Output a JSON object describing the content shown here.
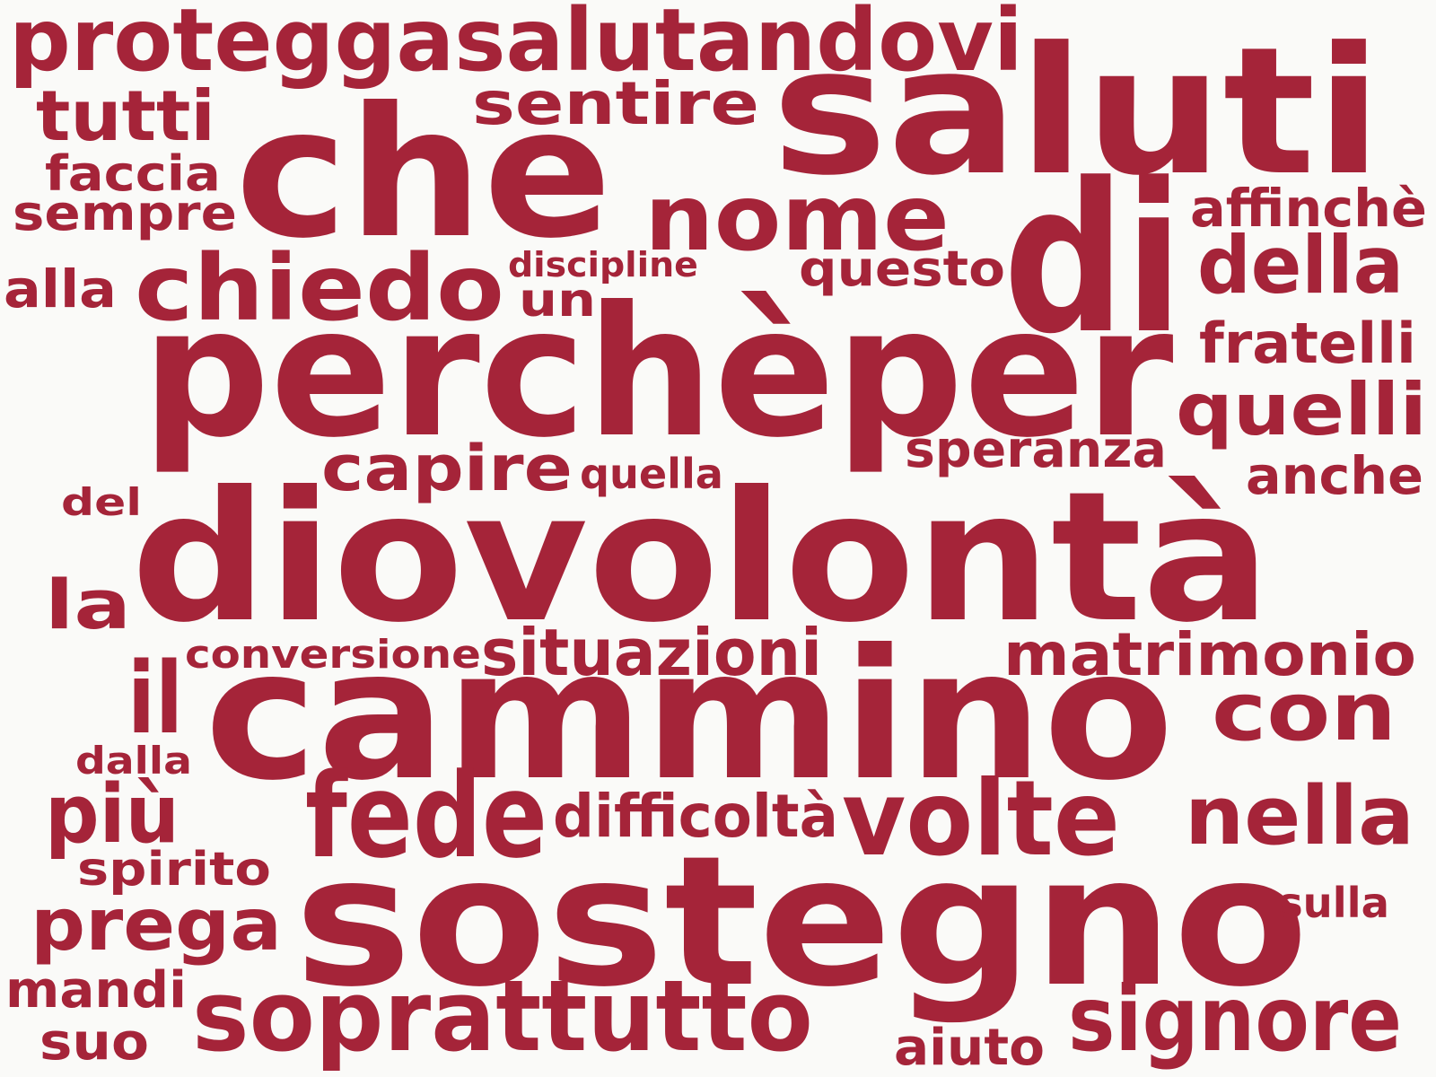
{
  "cloud": {
    "color": "#a52439",
    "words": [
      "proteggasalutandovi",
      "saluti",
      "tutti",
      "sentire",
      "che",
      "faccia",
      "sempre",
      "nome",
      "di",
      "affinchè",
      "della",
      "discipline",
      "questo",
      "alla",
      "chiedo",
      "un",
      "perchèper",
      "fratelli",
      "quelli",
      "speranza",
      "capire",
      "quella",
      "anche",
      "del",
      "diovolontà",
      "la",
      "conversione",
      "situazioni",
      "matrimonio",
      "il",
      "cammino",
      "con",
      "dalla",
      "più",
      "fede",
      "difficoltà",
      "volte",
      "nella",
      "spirito",
      "prega",
      "sostegno",
      "sulla",
      "mandi",
      "soprattutto",
      "signore",
      "suo",
      "aiuto"
    ]
  }
}
